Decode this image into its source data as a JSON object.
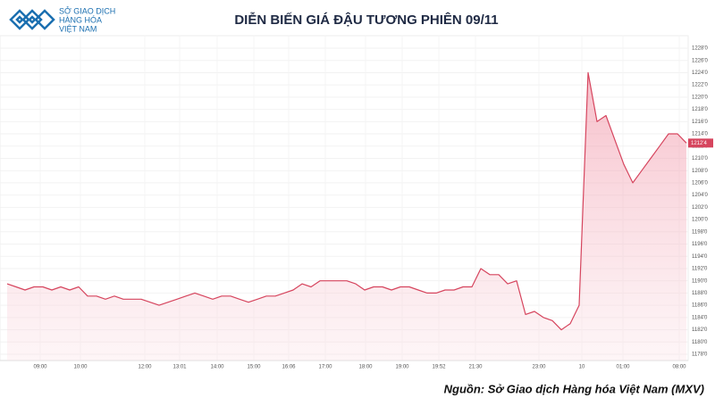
{
  "chart_data": {
    "type": "area",
    "title": "DIỄN BIẾN GIÁ ĐẬU TƯƠNG PHIÊN 09/11",
    "logo_lines": [
      "SỞ GIAO DỊCH",
      "HÀNG HÓA",
      "VIỆT NAM"
    ],
    "source": "Nguồn: Sở Giao dịch Hàng hóa Việt Nam (MXV)",
    "x": [
      0,
      1,
      2,
      3,
      4,
      5,
      6,
      7,
      8,
      9,
      10,
      11,
      12,
      13,
      14,
      15,
      16,
      17,
      18,
      19,
      20,
      21,
      22,
      23,
      24,
      25,
      26,
      27,
      28,
      29,
      30,
      31,
      32,
      33,
      34,
      35,
      36,
      37,
      38,
      39,
      40,
      41,
      42,
      43,
      44,
      45,
      46,
      47,
      48,
      49,
      50,
      51,
      52,
      53,
      54,
      55,
      56,
      57,
      58,
      59,
      60,
      61,
      62,
      63,
      64,
      65,
      66,
      67,
      68,
      69,
      70,
      71,
      72,
      73,
      74,
      75,
      76
    ],
    "series": [
      {
        "color": "#d6455e",
        "values": [
          1189.5,
          1189,
          1188.5,
          1189,
          1189,
          1188.5,
          1189,
          1188.5,
          1189,
          1187.5,
          1187.5,
          1187,
          1187.5,
          1187,
          1187,
          1187,
          1186.5,
          1186,
          1186.5,
          1187,
          1187.5,
          1188,
          1187.5,
          1187,
          1187.5,
          1187.5,
          1187,
          1186.5,
          1187,
          1187.5,
          1187.5,
          1188,
          1188.5,
          1189.5,
          1189,
          1190,
          1190,
          1190,
          1190,
          1189.5,
          1188.5,
          1189,
          1189,
          1188.5,
          1189,
          1189,
          1188.5,
          1188,
          1188,
          1188.5,
          1188.5,
          1189,
          1189,
          1192,
          1191,
          1191,
          1189.5,
          1190,
          1184.5,
          1185,
          1184,
          1183.5,
          1182,
          1183,
          1186,
          1224,
          1216,
          1217,
          1213,
          1209,
          1206,
          1208,
          1210,
          1212,
          1214,
          1214,
          1212.5
        ]
      }
    ],
    "last_price": {
      "value": 1212.5,
      "label": "1212'4"
    },
    "xlim": [
      0,
      76
    ],
    "xticks": [
      {
        "value": 3.7,
        "label": "09:00"
      },
      {
        "value": 8.2,
        "label": "10:00"
      },
      {
        "value": 15.4,
        "label": "12:00"
      },
      {
        "value": 19.3,
        "label": "13:01"
      },
      {
        "value": 23.5,
        "label": "14:00"
      },
      {
        "value": 27.6,
        "label": "15:00"
      },
      {
        "value": 31.5,
        "label": "16:06"
      },
      {
        "value": 35.6,
        "label": "17:00"
      },
      {
        "value": 40.1,
        "label": "18:00"
      },
      {
        "value": 44.2,
        "label": "19:00"
      },
      {
        "value": 48.3,
        "label": "19:52"
      },
      {
        "value": 52.4,
        "label": "21:30"
      },
      {
        "value": 59.5,
        "label": "23:00"
      },
      {
        "value": 64.3,
        "label": "10"
      },
      {
        "value": 68.9,
        "label": "01:00"
      },
      {
        "value": 75.2,
        "label": "08:00"
      }
    ],
    "ylim": [
      1178,
      1228
    ],
    "yticks": [
      {
        "value": 1178,
        "label": "1178'0"
      },
      {
        "value": 1180,
        "label": "1180'0"
      },
      {
        "value": 1182,
        "label": "1182'0"
      },
      {
        "value": 1184,
        "label": "1184'0"
      },
      {
        "value": 1186,
        "label": "1186'0"
      },
      {
        "value": 1188,
        "label": "1188'0"
      },
      {
        "value": 1190,
        "label": "1190'0"
      },
      {
        "value": 1192,
        "label": "1192'0"
      },
      {
        "value": 1194,
        "label": "1194'0"
      },
      {
        "value": 1196,
        "label": "1196'0"
      },
      {
        "value": 1198,
        "label": "1198'0"
      },
      {
        "value": 1200,
        "label": "1200'0"
      },
      {
        "value": 1202,
        "label": "1202'0"
      },
      {
        "value": 1204,
        "label": "1204'0"
      },
      {
        "value": 1206,
        "label": "1206'0"
      },
      {
        "value": 1208,
        "label": "1208'0"
      },
      {
        "value": 1210,
        "label": "1210'0"
      },
      {
        "value": 1212,
        "label": "1212'0"
      },
      {
        "value": 1214,
        "label": "1214'0"
      },
      {
        "value": 1216,
        "label": "1216'0"
      },
      {
        "value": 1218,
        "label": "1218'0"
      },
      {
        "value": 1220,
        "label": "1220'0"
      },
      {
        "value": 1222,
        "label": "1222'0"
      },
      {
        "value": 1224,
        "label": "1224'0"
      },
      {
        "value": 1226,
        "label": "1226'0"
      },
      {
        "value": 1228,
        "label": "1228'0"
      }
    ],
    "grid": true
  }
}
